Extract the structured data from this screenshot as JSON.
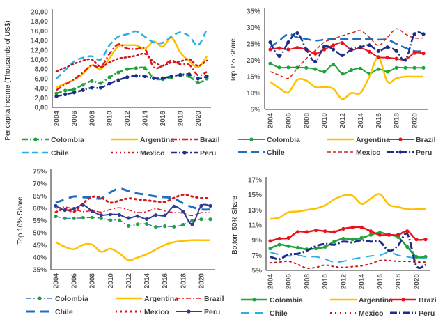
{
  "chart_data": [
    {
      "type": "line",
      "ylabel": "Per capita income (Thousands of US$)",
      "ylim": [
        0,
        20
      ],
      "yticks": [
        "0,00",
        "2,00",
        "4,00",
        "6,00",
        "8,00",
        "10,00",
        "12,00",
        "14,00",
        "16,00",
        "18,00",
        "20,00"
      ],
      "xticks": [
        "2004",
        "2006",
        "2008",
        "2010",
        "2012",
        "2014",
        "2016",
        "2018",
        "2020"
      ],
      "x": [
        2004,
        2005,
        2006,
        2007,
        2008,
        2009,
        2010,
        2011,
        2012,
        2013,
        2014,
        2015,
        2016,
        2017,
        2018,
        2019,
        2020,
        2021
      ],
      "legend": "bottom",
      "series": [
        {
          "name": "Colombia",
          "color": "#1fa33a",
          "values": [
            2.9,
            3.5,
            3.8,
            4.7,
            5.5,
            5.1,
            6.3,
            7.3,
            8.0,
            8.2,
            8.2,
            6.1,
            5.9,
            6.3,
            6.7,
            6.5,
            5.2,
            6.0
          ]
        },
        {
          "name": "Argentina",
          "color": "#ffc000",
          "values": [
            4.2,
            5.0,
            5.8,
            7.0,
            8.8,
            8.0,
            10.3,
            12.8,
            13.0,
            13.0,
            12.3,
            13.8,
            12.7,
            14.6,
            11.5,
            9.7,
            8.4,
            10.7
          ]
        },
        {
          "name": "Brazil",
          "color": "#e8141c",
          "values": [
            3.6,
            4.8,
            5.9,
            7.3,
            8.8,
            8.4,
            11.2,
            13.2,
            12.3,
            12.2,
            12.2,
            8.4,
            8.7,
            9.8,
            9.0,
            8.9,
            6.7,
            7.4
          ]
        },
        {
          "name": "Chile",
          "color": "#29aee6",
          "values": [
            6.0,
            7.8,
            9.6,
            10.4,
            10.7,
            10.0,
            13.0,
            14.8,
            15.3,
            15.9,
            14.8,
            13.6,
            13.5,
            14.8,
            15.7,
            14.9,
            13.0,
            16.3
          ]
        },
        {
          "name": "Mexico",
          "color": "#c8141c",
          "values": [
            7.5,
            8.3,
            9.1,
            9.8,
            10.0,
            8.5,
            9.4,
            10.2,
            10.5,
            10.8,
            11.2,
            9.5,
            8.7,
            9.4,
            9.6,
            10.1,
            8.7,
            9.8
          ]
        },
        {
          "name": "Peru",
          "color": "#1f2d8a",
          "values": [
            2.3,
            2.7,
            3.1,
            3.6,
            4.1,
            4.1,
            5.0,
            5.7,
            6.3,
            6.6,
            6.5,
            6.1,
            6.1,
            6.5,
            6.8,
            6.9,
            6.0,
            6.5
          ]
        }
      ]
    },
    {
      "type": "line",
      "ylabel": "Top 1% Share",
      "ylim": [
        5,
        35
      ],
      "yticks": [
        "5%",
        "10%",
        "15%",
        "20%",
        "25%",
        "30%",
        "35%"
      ],
      "xticks": [
        "2004",
        "2006",
        "2008",
        "2010",
        "2012",
        "2014",
        "2016",
        "2018",
        "2020"
      ],
      "x": [
        2004,
        2005,
        2006,
        2007,
        2008,
        2009,
        2010,
        2011,
        2012,
        2013,
        2014,
        2015,
        2016,
        2017,
        2018,
        2019,
        2020,
        2021
      ],
      "legend": "bottom",
      "series": [
        {
          "name": "Colombia",
          "color": "#1fa33a",
          "values": [
            19,
            17.8,
            17.8,
            17.8,
            17.7,
            17.3,
            16.5,
            18.7,
            15.9,
            17,
            17.5,
            15.9,
            17.3,
            16.5,
            17.7,
            17.7,
            17.7,
            17.7
          ]
        },
        {
          "name": "Argentina",
          "color": "#ffc000",
          "values": [
            13.4,
            11.5,
            10.2,
            14,
            13.8,
            11.8,
            11.8,
            11.3,
            8.2,
            10,
            10,
            15,
            21,
            13.5,
            14.5,
            15,
            15,
            15
          ]
        },
        {
          "name": "Brazil",
          "color": "#e8141c",
          "values": [
            23.3,
            23.7,
            23.3,
            23.8,
            23.3,
            22,
            23.3,
            24.6,
            25.3,
            23.2,
            23.8,
            22.6,
            21,
            20.8,
            20.5,
            20.2,
            22.2,
            22.1
          ]
        },
        {
          "name": "Chile",
          "color": "#1f6fc0",
          "values": [
            24,
            26,
            28,
            27,
            26.5,
            26,
            26.3,
            26.5,
            26.5,
            26.5,
            26.5,
            26.5,
            26.3,
            26.3,
            25,
            23.8,
            22.8,
            22.8
          ]
        },
        {
          "name": "Mexico",
          "color": "#c8281c",
          "values": [
            16.5,
            15.5,
            14.5,
            17.5,
            20.5,
            23,
            25.5,
            26.5,
            27.5,
            28.3,
            29,
            27,
            24.5,
            27,
            29.6,
            28,
            26.8,
            26.8
          ]
        },
        {
          "name": "Peru",
          "color": "#1f2d8a",
          "values": [
            25.5,
            21.3,
            25.5,
            28.3,
            23.3,
            19.6,
            24.2,
            23.3,
            21.5,
            23.3,
            24,
            24.6,
            22.8,
            24,
            22.8,
            20.1,
            28,
            28
          ]
        }
      ]
    },
    {
      "type": "line",
      "ylabel": "Top 10% Share",
      "ylim": [
        35,
        75
      ],
      "yticks": [
        "35%",
        "40%",
        "45%",
        "50%",
        "55%",
        "60%",
        "65%",
        "70%",
        "75%"
      ],
      "xticks": [
        "2004",
        "2006",
        "2008",
        "2010",
        "2012",
        "2014",
        "2016",
        "2018",
        "2020"
      ],
      "x": [
        2004,
        2005,
        2006,
        2007,
        2008,
        2009,
        2010,
        2011,
        2012,
        2013,
        2014,
        2015,
        2016,
        2017,
        2018,
        2019,
        2020,
        2021
      ],
      "legend": "bottom",
      "series": [
        {
          "name": "Colombia",
          "color": "#4472c4",
          "values": [
            56.7,
            55.9,
            55.9,
            56.1,
            56.2,
            55.9,
            55.1,
            55.1,
            52.8,
            53.5,
            53.6,
            52.4,
            52.7,
            52.5,
            53.3,
            55,
            55.5,
            55.5
          ]
        },
        {
          "name": "Argentina",
          "color": "#ffc000",
          "values": [
            46.2,
            44.3,
            43.3,
            45.1,
            45.2,
            42.3,
            43.5,
            41.7,
            38.9,
            40,
            41.3,
            43.2,
            45.1,
            46.2,
            46.7,
            47,
            47,
            47
          ]
        },
        {
          "name": "Brazil",
          "color": "#e8141c",
          "values": [
            60,
            60.5,
            59.6,
            58.6,
            59,
            58.5,
            59.5,
            60.2,
            59.3,
            58.3,
            58.6,
            59.8,
            58.9,
            58.3,
            58,
            57,
            58.2,
            58.2
          ]
        },
        {
          "name": "Chile",
          "color": "#1f6fc0",
          "values": [
            62.3,
            63.5,
            64.8,
            64.5,
            64.3,
            64,
            66.5,
            68,
            67,
            66,
            65.5,
            64.8,
            64.5,
            64,
            62,
            60.5,
            59.5,
            59.5
          ]
        },
        {
          "name": "Mexico",
          "color": "#d21a1a",
          "values": [
            58.4,
            59.8,
            58.6,
            62,
            64.6,
            64.3,
            62.3,
            63.1,
            64,
            63.6,
            63.2,
            62.8,
            62.6,
            64.2,
            65.5,
            64.8,
            64.1,
            64.1
          ]
        },
        {
          "name": "Peru",
          "color": "#2e3a94",
          "values": [
            61,
            59.2,
            59.8,
            61.3,
            58.9,
            57.2,
            57.5,
            57.3,
            56,
            56.8,
            55.6,
            57.2,
            57.1,
            60.7,
            58.6,
            53.5,
            61,
            61
          ]
        }
      ]
    },
    {
      "type": "line",
      "ylabel": "Bottom 50% Share",
      "ylim": [
        5,
        17
      ],
      "yticks": [
        "5%",
        "7%",
        "9%",
        "11%",
        "13%",
        "15%",
        "17%"
      ],
      "xticks": [
        "2004",
        "2006",
        "2008",
        "2010",
        "2012",
        "2014",
        "2016",
        "2018",
        "2020"
      ],
      "x": [
        2004,
        2005,
        2006,
        2007,
        2008,
        2009,
        2010,
        2011,
        2012,
        2013,
        2014,
        2015,
        2016,
        2017,
        2018,
        2019,
        2020,
        2021
      ],
      "legend": "bottom",
      "series": [
        {
          "name": "Colombia",
          "color": "#1fa33a",
          "values": [
            7.9,
            8.4,
            8.2,
            8,
            7.8,
            7.9,
            8.1,
            8.8,
            9.2,
            9.1,
            9.3,
            9.7,
            10,
            9.7,
            9.4,
            8.1,
            6.8,
            6.8
          ]
        },
        {
          "name": "Argentina",
          "color": "#ffc000",
          "values": [
            11.8,
            12,
            12.7,
            12.8,
            13,
            13.2,
            13.6,
            14.4,
            14.9,
            14.9,
            13.8,
            14.5,
            15.1,
            13.7,
            13.4,
            13.1,
            13.1,
            13.1
          ]
        },
        {
          "name": "Brazil",
          "color": "#e8141c",
          "values": [
            8.9,
            9.2,
            9.3,
            10.1,
            10.1,
            10.3,
            10.2,
            10.1,
            10.5,
            10.7,
            10.7,
            10.2,
            9.7,
            9.7,
            9.7,
            10.2,
            9.1,
            9.1
          ]
        },
        {
          "name": "Chile",
          "color": "#29aee6",
          "values": [
            7.4,
            7.1,
            6.9,
            7,
            6.8,
            6.8,
            6.5,
            6.1,
            6.2,
            6.5,
            6.7,
            6.9,
            7,
            7.4,
            7,
            6.8,
            6.6,
            6.6
          ]
        },
        {
          "name": "Mexico",
          "color": "#c8141c",
          "values": [
            6,
            6.1,
            6.2,
            5.8,
            5.3,
            5.4,
            5.7,
            5.5,
            5.4,
            5.5,
            5.6,
            5.9,
            6.3,
            6.3,
            6.2,
            6.2,
            6.1,
            6.1
          ]
        },
        {
          "name": "Peru",
          "color": "#1f2d8a",
          "values": [
            6.8,
            6.5,
            7.1,
            7.2,
            7.6,
            8.2,
            8.5,
            8.4,
            8.8,
            8.7,
            9,
            8.8,
            8.8,
            7.6,
            8.3,
            9.8,
            5.6,
            5.7
          ]
        }
      ]
    }
  ]
}
